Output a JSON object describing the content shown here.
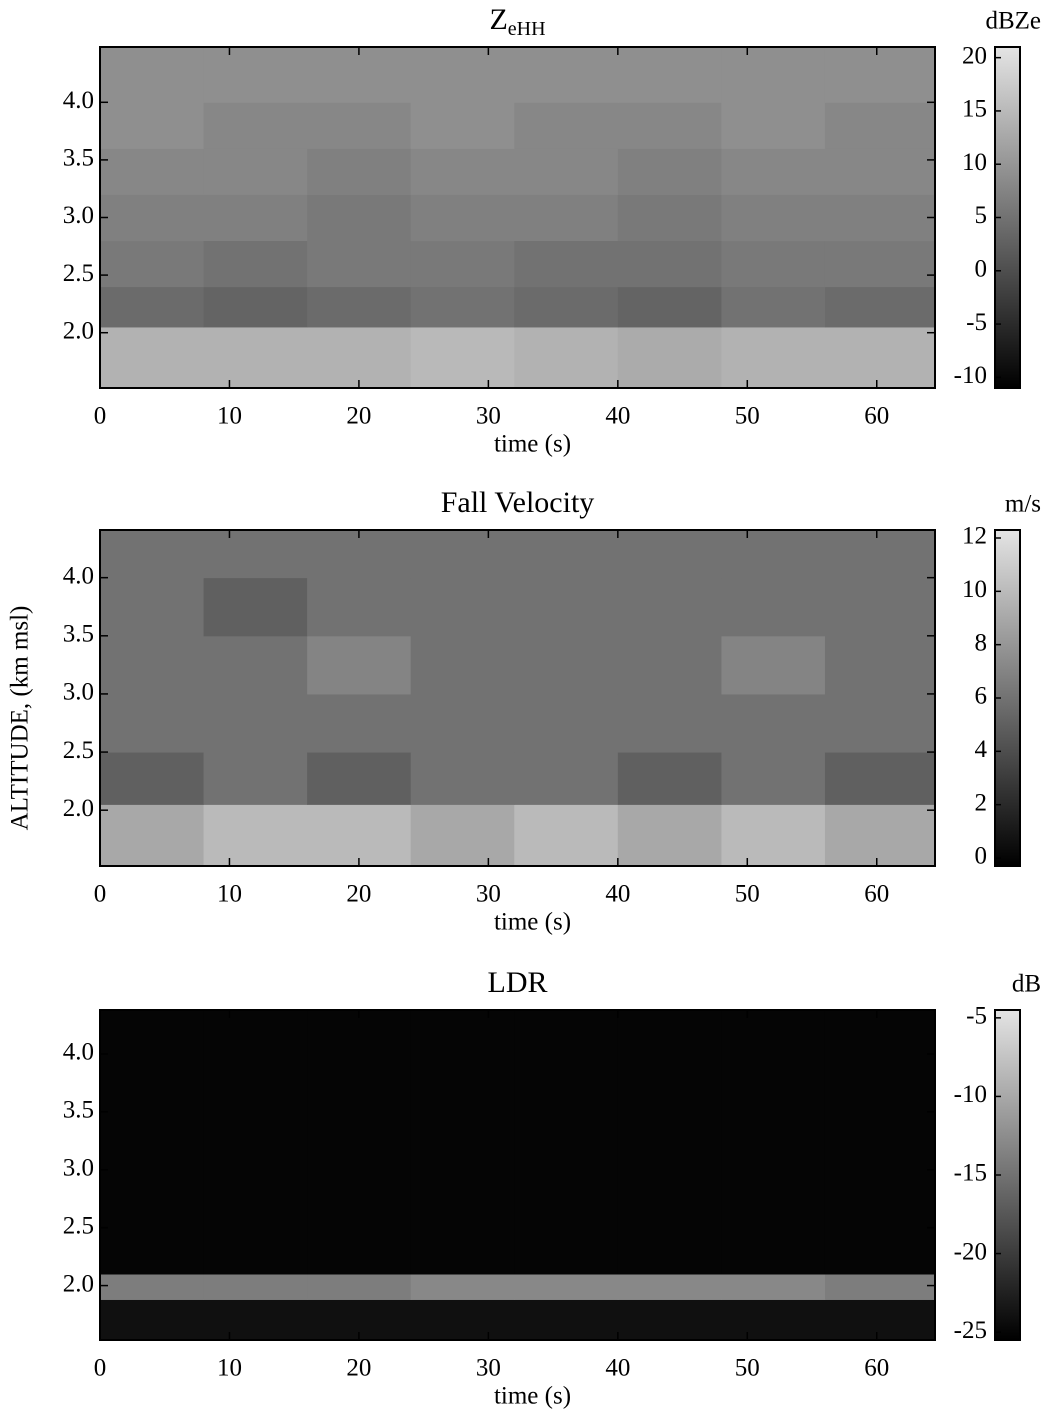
{
  "chart_data": [
    {
      "type": "heatmap",
      "title": "Z",
      "title_subscript": "eHH",
      "xlabel": "time (s)",
      "colorbar_label": "dBZe",
      "xlim": [
        0,
        64.5
      ],
      "xticks": [
        0,
        10,
        20,
        30,
        40,
        50,
        60
      ],
      "ylim": [
        1.52,
        4.48
      ],
      "yticks": [
        {
          "value": 2.0,
          "label": "2.0"
        },
        {
          "value": 2.5,
          "label": "2.5"
        },
        {
          "value": 3.0,
          "label": "3.0"
        },
        {
          "value": 3.5,
          "label": "3.5"
        },
        {
          "value": 4.0,
          "label": "4.0"
        }
      ],
      "zlim": [
        -11,
        21
      ],
      "zticks": [
        -10,
        -5,
        0,
        5,
        10,
        15,
        20
      ],
      "colormap": [
        "#000000",
        "#e4e4e4"
      ],
      "xbins": [
        0,
        8,
        16,
        24,
        32,
        40,
        48,
        56,
        64.5
      ],
      "ybins": [
        1.52,
        2.05,
        2.4,
        2.8,
        3.2,
        3.6,
        4.0,
        4.48
      ],
      "z": [
        [
          14,
          14,
          14,
          15,
          14,
          13,
          14,
          14
        ],
        [
          4,
          3,
          4,
          5,
          4,
          3,
          5,
          4
        ],
        [
          6,
          5,
          6,
          6,
          5,
          5,
          6,
          6
        ],
        [
          7,
          7,
          6,
          7,
          7,
          6,
          7,
          7
        ],
        [
          8,
          8,
          7,
          8,
          8,
          7,
          8,
          8
        ],
        [
          9,
          8,
          8,
          9,
          8,
          8,
          9,
          8
        ],
        [
          9,
          9,
          9,
          9,
          9,
          9,
          9,
          9
        ]
      ]
    },
    {
      "type": "heatmap",
      "title": "Fall Velocity",
      "xlabel": "time (s)",
      "ylabel": "ALTITUDE, (km msl)",
      "colorbar_label": "m/s",
      "xlim": [
        0,
        64.5
      ],
      "xticks": [
        0,
        10,
        20,
        30,
        40,
        50,
        60
      ],
      "ylim": [
        1.52,
        4.41
      ],
      "yticks": [
        {
          "value": 2.0,
          "label": "2.0"
        },
        {
          "value": 2.5,
          "label": "2.5"
        },
        {
          "value": 3.0,
          "label": "3.0"
        },
        {
          "value": 3.5,
          "label": "3.5"
        },
        {
          "value": 4.0,
          "label": "4.0"
        }
      ],
      "zlim": [
        -0.3,
        12.3
      ],
      "zticks": [
        0,
        2,
        4,
        6,
        8,
        10,
        12
      ],
      "colormap": [
        "#000000",
        "#e4e4e4"
      ],
      "xbins": [
        0,
        8,
        16,
        24,
        32,
        40,
        48,
        56,
        64.5
      ],
      "ybins": [
        1.52,
        2.05,
        2.5,
        3.0,
        3.5,
        4.0,
        4.41
      ],
      "z": [
        [
          9,
          10,
          10,
          9,
          10,
          9,
          10,
          9
        ],
        [
          5,
          6,
          5,
          6,
          6,
          5,
          6,
          5
        ],
        [
          6,
          6,
          6,
          6,
          6,
          6,
          6,
          6
        ],
        [
          6,
          6,
          7,
          6,
          6,
          6,
          7,
          6
        ],
        [
          6,
          5,
          6,
          6,
          6,
          6,
          6,
          6
        ],
        [
          6,
          6,
          6,
          6,
          6,
          6,
          6,
          6
        ]
      ]
    },
    {
      "type": "heatmap",
      "title": "LDR",
      "xlabel": "time (s)",
      "colorbar_label": "dB",
      "xlim": [
        0,
        64.5
      ],
      "xticks": [
        0,
        10,
        20,
        30,
        40,
        50,
        60
      ],
      "ylim": [
        1.53,
        4.38
      ],
      "yticks": [
        {
          "value": 2.0,
          "label": "2.0"
        },
        {
          "value": 2.5,
          "label": "2.5"
        },
        {
          "value": 3.0,
          "label": "3.0"
        },
        {
          "value": 3.5,
          "label": "3.5"
        },
        {
          "value": 4.0,
          "label": "4.0"
        }
      ],
      "zlim": [
        -25.5,
        -4.5
      ],
      "zticks": [
        -25,
        -20,
        -15,
        -10,
        -5
      ],
      "colormap": [
        "#000000",
        "#e4e4e4"
      ],
      "xbins": [
        0,
        8,
        16,
        24,
        32,
        40,
        48,
        56,
        64.5
      ],
      "ybins": [
        1.53,
        1.88,
        2.1,
        4.38
      ],
      "z": [
        [
          -24,
          -24,
          -24,
          -24,
          -24,
          -24,
          -24,
          -24
        ],
        [
          -14,
          -14,
          -14,
          -13,
          -13,
          -13,
          -13,
          -14
        ],
        [
          -25,
          -25,
          -25,
          -25,
          -25,
          -25,
          -25,
          -25
        ]
      ]
    }
  ]
}
